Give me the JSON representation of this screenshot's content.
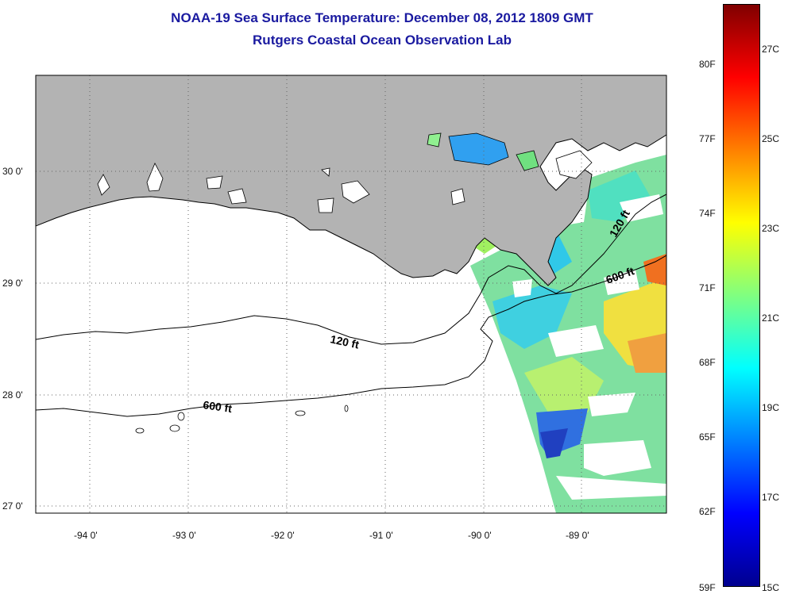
{
  "title": {
    "line1": "NOAA-19 Sea Surface Temperature:  December 08, 2012 1809 GMT",
    "line2": "Rutgers Coastal Ocean Observation Lab"
  },
  "map": {
    "lat_ticks": [
      "30 0'",
      "29 0'",
      "28 0'",
      "27 0'"
    ],
    "lon_ticks": [
      "-94 0'",
      "-93 0'",
      "-92 0'",
      "-91 0'",
      "-90 0'",
      "-89 0'"
    ],
    "isobaths": [
      {
        "label": "120 ft",
        "label_offshore": "120 ft"
      },
      {
        "label": "600 ft",
        "label_offshore": "600 ft"
      }
    ],
    "colors": {
      "land": "#b3b3b3",
      "ocean": "#ffffff",
      "grid": "#666666",
      "contour": "#000000"
    }
  },
  "colorbar": {
    "fahrenheit": [
      "80F",
      "77F",
      "74F",
      "71F",
      "68F",
      "65F",
      "62F",
      "59F"
    ],
    "celsius": [
      "27C",
      "25C",
      "23C",
      "21C",
      "19C",
      "17C",
      "15C"
    ],
    "range_c": [
      15,
      28.5
    ],
    "stops": [
      "#00008f",
      "#0000ff",
      "#0080ff",
      "#00ffff",
      "#80ff80",
      "#ffff00",
      "#ff8000",
      "#ff0000",
      "#800000"
    ]
  }
}
